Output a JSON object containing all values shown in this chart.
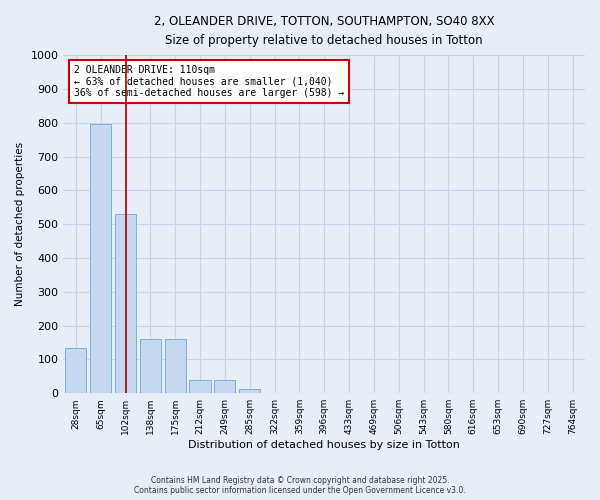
{
  "title_line1": "2, OLEANDER DRIVE, TOTTON, SOUTHAMPTON, SO40 8XX",
  "title_line2": "Size of property relative to detached houses in Totton",
  "xlabel": "Distribution of detached houses by size in Totton",
  "ylabel": "Number of detached properties",
  "bar_labels": [
    "28sqm",
    "65sqm",
    "102sqm",
    "138sqm",
    "175sqm",
    "212sqm",
    "249sqm",
    "285sqm",
    "322sqm",
    "359sqm",
    "396sqm",
    "433sqm",
    "469sqm",
    "506sqm",
    "543sqm",
    "580sqm",
    "616sqm",
    "653sqm",
    "690sqm",
    "727sqm",
    "764sqm"
  ],
  "bar_heights": [
    135,
    795,
    530,
    160,
    160,
    38,
    38,
    13,
    0,
    0,
    0,
    0,
    0,
    0,
    0,
    0,
    0,
    0,
    0,
    0,
    0
  ],
  "bar_color": "#c5d8f0",
  "bar_edgecolor": "#7aafd4",
  "property_line_x": 2,
  "property_line_color": "#aa0000",
  "annotation_text": "2 OLEANDER DRIVE: 110sqm\n← 63% of detached houses are smaller (1,040)\n36% of semi-detached houses are larger (598) →",
  "ylim": [
    0,
    1000
  ],
  "yticks": [
    0,
    100,
    200,
    300,
    400,
    500,
    600,
    700,
    800,
    900,
    1000
  ],
  "grid_color": "#c8d4e8",
  "background_color": "#e8eef8",
  "footer_line1": "Contains HM Land Registry data © Crown copyright and database right 2025.",
  "footer_line2": "Contains public sector information licensed under the Open Government Licence v3.0."
}
